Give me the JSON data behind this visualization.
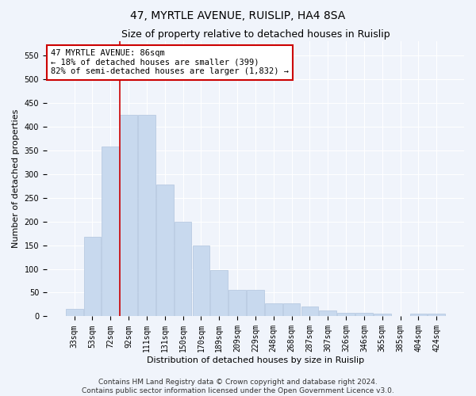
{
  "title": "47, MYRTLE AVENUE, RUISLIP, HA4 8SA",
  "subtitle": "Size of property relative to detached houses in Ruislip",
  "xlabel": "Distribution of detached houses by size in Ruislip",
  "ylabel": "Number of detached properties",
  "categories": [
    "33sqm",
    "53sqm",
    "72sqm",
    "92sqm",
    "111sqm",
    "131sqm",
    "150sqm",
    "170sqm",
    "189sqm",
    "209sqm",
    "229sqm",
    "248sqm",
    "268sqm",
    "287sqm",
    "307sqm",
    "326sqm",
    "346sqm",
    "365sqm",
    "385sqm",
    "404sqm",
    "424sqm"
  ],
  "values": [
    15,
    168,
    357,
    425,
    425,
    278,
    200,
    150,
    97,
    55,
    55,
    28,
    28,
    20,
    13,
    8,
    8,
    5,
    0,
    5,
    5
  ],
  "bar_color": "#c8d9ee",
  "bar_edgecolor": "#b0c4de",
  "vline_x": 2.5,
  "vline_color": "#cc0000",
  "annotation_text": "47 MYRTLE AVENUE: 86sqm\n← 18% of detached houses are smaller (399)\n82% of semi-detached houses are larger (1,832) →",
  "annotation_box_color": "#ffffff",
  "annotation_box_edgecolor": "#cc0000",
  "ylim": [
    0,
    580
  ],
  "yticks": [
    0,
    50,
    100,
    150,
    200,
    250,
    300,
    350,
    400,
    450,
    500,
    550
  ],
  "footer": "Contains HM Land Registry data © Crown copyright and database right 2024.\nContains public sector information licensed under the Open Government Licence v3.0.",
  "bg_color": "#f0f4fb",
  "plot_bg_color": "#f0f4fb",
  "grid_color": "#ffffff",
  "title_fontsize": 10,
  "subtitle_fontsize": 9,
  "axis_label_fontsize": 8,
  "tick_fontsize": 7,
  "annotation_fontsize": 7.5,
  "footer_fontsize": 6.5
}
